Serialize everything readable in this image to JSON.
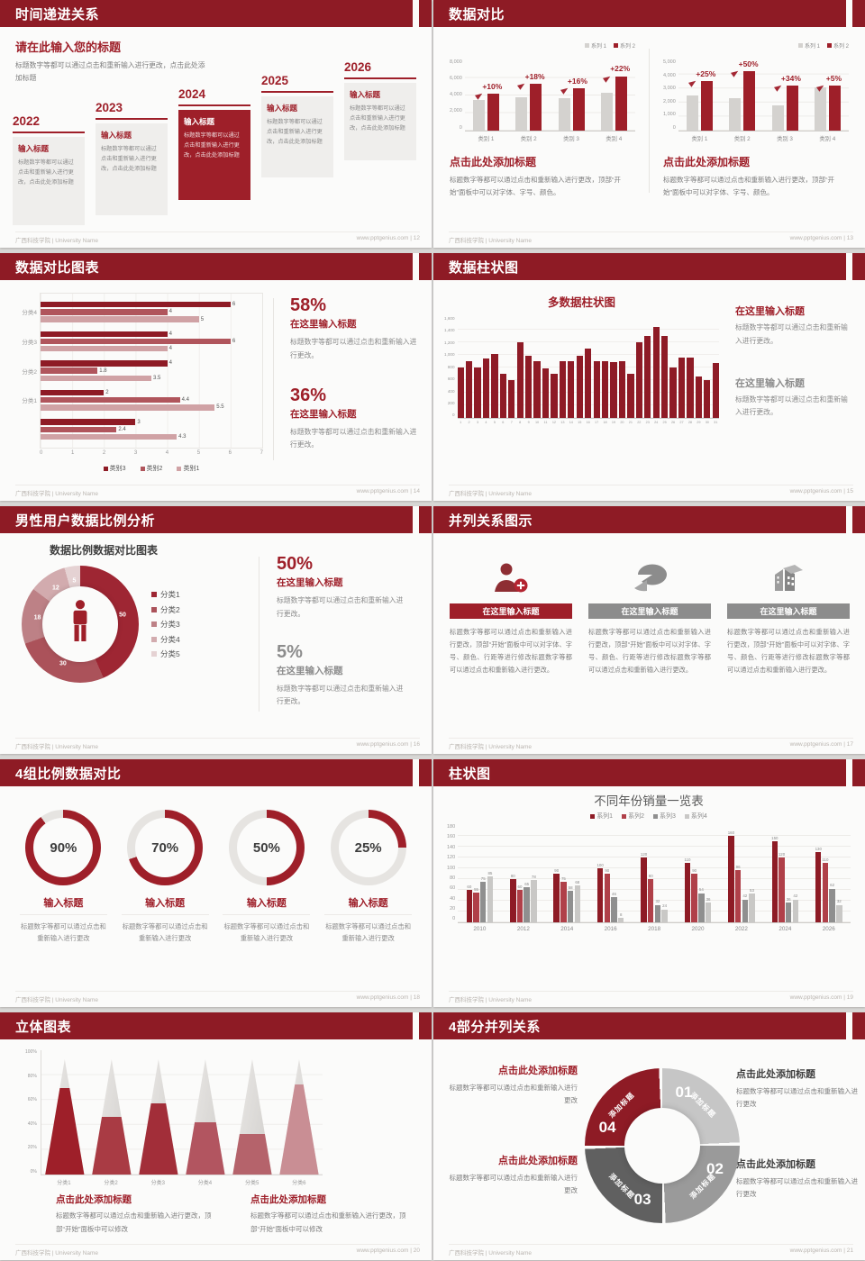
{
  "colors": {
    "header_bg": "#8e1b25",
    "accent_red": "#9e1f29",
    "red_mid": "#b0555c",
    "red_light": "#d0a2a5",
    "gray_bar": "#d4d2cf",
    "gray_dark": "#595959"
  },
  "footer": {
    "left": "广西科技学院 | University Name",
    "site": "www.pptgenius.com",
    "sep": " | "
  },
  "slides": {
    "s12": {
      "title": "时间递进关系",
      "page": "12",
      "intro_title": "请在此输入您的标题",
      "intro_body": "标题数字等都可以通过点击和重新输入进行更改，点击此处添加标题",
      "years": [
        "2022",
        "2023",
        "2024",
        "2025",
        "2026"
      ],
      "item_title": "输入标题",
      "item_body": "标题数字等都可以通过点击和重新输入进行更改，点击此处添加标题"
    },
    "s13": {
      "title": "数据对比",
      "page": "13",
      "block_title": "点击此处添加标题",
      "block_body": "标题数字等都可以通过点击和重新输入进行更改，顶部“开始”面板中可以对字体、字号、颜色。"
    },
    "s14": {
      "title": "数据对比图表",
      "page": "14",
      "stats": [
        {
          "pct": "58%",
          "heading": "在这里输入标题",
          "body": "标题数字等都可以通过点击和重新输入进行更改。"
        },
        {
          "pct": "36%",
          "heading": "在这里输入标题",
          "body": "标题数字等都可以通过点击和重新输入进行更改。"
        }
      ]
    },
    "s15": {
      "title": "数据柱状图",
      "page": "15",
      "blocks": [
        {
          "heading": "在这里输入标题",
          "body": "标题数字等都可以通过点击和重新输入进行更改。"
        },
        {
          "heading": "在这里输入标题",
          "body": "标题数字等都可以通过点击和重新输入进行更改。"
        }
      ]
    },
    "s16": {
      "title": "男性用户数据比例分析",
      "page": "16",
      "stats": [
        {
          "pct": "50%",
          "heading": "在这里输入标题",
          "body": "标题数字等都可以通过点击和重新输入进行更改。"
        },
        {
          "pct": "5%",
          "heading": "在这里输入标题",
          "body": "标题数字等都可以通过点击和重新输入进行更改。"
        }
      ]
    },
    "s17": {
      "title": "并列关系图示",
      "page": "17",
      "banner": "在这里输入标题",
      "body": "标题数字等都可以通过点击和重新输入进行更改，顶部“开始”面板中可以对字体、字号、颜色、行距等进行修改标题数字等都可以通过点击和重新输入进行更改。"
    },
    "s18": {
      "title": "4组比例数据对比",
      "page": "18",
      "item_title": "输入标题",
      "item_body": "标题数字等都可以通过点击和重新输入进行更改"
    },
    "s19": {
      "title": "柱状图",
      "page": "19"
    },
    "s20": {
      "title": "立体图表",
      "page": "20",
      "block_title": "点击此处添加标题",
      "block_body": "标题数字等都可以通过点击和重新输入进行更改，顶部“开始”面板中可以修改"
    },
    "s21": {
      "title": "4部分并列关系",
      "page": "21",
      "block_title": "点击此处添加标题",
      "block_body": "标题数字等都可以通过点击和重新输入进行更改"
    }
  },
  "chart_data": [
    {
      "id": "chart-13-left",
      "type": "bar",
      "categories": [
        "类别 1",
        "类别 2",
        "类别 3",
        "类别 4"
      ],
      "series": [
        {
          "name": "系列 1",
          "color": "#d4d2cf",
          "values": [
            3500,
            3800,
            3700,
            4300
          ]
        },
        {
          "name": "系列 2",
          "color": "#9e1f29",
          "values": [
            4200,
            5300,
            4800,
            6200
          ]
        }
      ],
      "growth_labels": [
        "+10%",
        "+18%",
        "+16%",
        "+22%"
      ],
      "ylim": [
        0,
        8000
      ],
      "ytick_labels": [
        "8,000",
        "6,000",
        "4,000",
        "2,000",
        "0"
      ],
      "legend_position": "top-right",
      "grid": true
    },
    {
      "id": "chart-13-right",
      "type": "bar",
      "categories": [
        "类别 1",
        "类别 2",
        "类别 3",
        "类别 4"
      ],
      "series": [
        {
          "name": "系列 1",
          "color": "#d4d2cf",
          "values": [
            2500,
            2300,
            1800,
            3100
          ]
        },
        {
          "name": "系列 2",
          "color": "#9e1f29",
          "values": [
            3500,
            4200,
            3200,
            3200
          ]
        }
      ],
      "growth_labels": [
        "+25%",
        "+50%",
        "+34%",
        "+5%"
      ],
      "ylim": [
        0,
        5000
      ],
      "ytick_labels": [
        "5,000",
        "4,000",
        "3,000",
        "2,000",
        "1,000",
        "0"
      ],
      "legend_position": "top-right",
      "grid": true
    },
    {
      "id": "chart-14",
      "type": "bar-horizontal",
      "groups": [
        "分类4",
        "分类3",
        "分类2",
        "分类1",
        ""
      ],
      "series_names": [
        "类别3",
        "类别2",
        "类别1"
      ],
      "colors": [
        "#8e1b25",
        "#b0555c",
        "#d0a2a5"
      ],
      "values": [
        [
          6,
          4,
          5
        ],
        [
          4,
          6,
          4
        ],
        [
          4,
          1.8,
          3.5
        ],
        [
          2,
          4.4,
          5.5
        ],
        [
          3,
          2.4,
          4.3
        ]
      ],
      "xlim": [
        0,
        7
      ],
      "xticks": [
        0,
        1,
        2,
        3,
        4,
        5,
        6,
        7
      ],
      "legend_position": "bottom",
      "grid": true
    },
    {
      "id": "chart-15",
      "type": "bar",
      "title": "多数据柱状图",
      "x": [
        1,
        2,
        3,
        4,
        5,
        6,
        7,
        8,
        9,
        10,
        11,
        12,
        13,
        14,
        15,
        16,
        17,
        18,
        19,
        20,
        21,
        22,
        23,
        24,
        25,
        26,
        27,
        28,
        29,
        30,
        31
      ],
      "values": [
        800,
        900,
        800,
        950,
        1020,
        700,
        600,
        1200,
        980,
        900,
        780,
        700,
        900,
        900,
        990,
        1100,
        900,
        900,
        880,
        900,
        700,
        1200,
        1300,
        1450,
        1300,
        800,
        960,
        960,
        660,
        600,
        870
      ],
      "ylim": [
        0,
        1600
      ],
      "ytick_labels": [
        "1,600",
        "1,400",
        "1,200",
        "1,000",
        "800",
        "600",
        "400",
        "200",
        "0"
      ],
      "grid": true
    },
    {
      "id": "chart-16",
      "type": "donut",
      "title": "数据比例数据对比图表",
      "legend": [
        "分类1",
        "分类2",
        "分类3",
        "分类4",
        "分类5"
      ],
      "values": [
        50,
        30,
        18,
        12,
        5
      ],
      "colors": [
        "#9e2633",
        "#ab525a",
        "#bd8186",
        "#d2abae",
        "#e5d2d3"
      ],
      "center_icon": "male-person-icon",
      "legend_position": "right"
    },
    {
      "id": "chart-18",
      "type": "progress-rings",
      "values": [
        90,
        70,
        50,
        25
      ],
      "labels": [
        "90%",
        "70%",
        "50%",
        "25%"
      ],
      "ring_color": "#9e1f29",
      "track_color": "#e6e4e1"
    },
    {
      "id": "chart-19",
      "type": "bar",
      "title": "不同年份销量一览表",
      "categories": [
        "2010",
        "2012",
        "2014",
        "2016",
        "2018",
        "2020",
        "2022",
        "2024",
        "2026"
      ],
      "series": [
        {
          "name": "系列1",
          "color": "#8e1b25",
          "values": [
            60,
            80,
            90,
            100,
            120,
            110,
            160,
            150,
            130
          ]
        },
        {
          "name": "系列2",
          "color": "#b04049",
          "values": [
            55,
            60,
            75,
            90,
            80,
            90,
            96,
            120,
            110
          ]
        },
        {
          "name": "系列3",
          "color": "#8f8f8f",
          "values": [
            75,
            65,
            58,
            46,
            32,
            54,
            42,
            36,
            62
          ]
        },
        {
          "name": "系列4",
          "color": "#c9c8c6",
          "values": [
            85,
            78,
            68,
            8,
            24,
            36,
            53,
            42,
            32
          ]
        }
      ],
      "ylim": [
        0,
        180
      ],
      "ytick_labels": [
        "180",
        "160",
        "140",
        "120",
        "100",
        "80",
        "60",
        "40",
        "20",
        "0"
      ],
      "legend_position": "top-center",
      "grid": true,
      "value_labels": true
    },
    {
      "id": "chart-20",
      "type": "cone",
      "categories": [
        "分类1",
        "分类2",
        "分类3",
        "分类4",
        "分类5",
        "分类6"
      ],
      "fill_percent": [
        75,
        50,
        62,
        45,
        35,
        78
      ],
      "fill_colors": [
        "#9e1f29",
        "#a93b44",
        "#a22e39",
        "#b25560",
        "#b5636b",
        "#c98e94"
      ],
      "ytick_labels": [
        "100%",
        "80%",
        "60%",
        "40%",
        "20%",
        "0%"
      ]
    },
    {
      "id": "chart-21",
      "type": "segmented-donut",
      "segments": [
        {
          "num": "01",
          "label": "添加标题",
          "color": "#c6c6c6"
        },
        {
          "num": "02",
          "label": "添加标题",
          "color": "#9a9a9a"
        },
        {
          "num": "03",
          "label": "添加标题",
          "color": "#606060"
        },
        {
          "num": "04",
          "label": "添加标题",
          "color": "#8e1b25"
        }
      ]
    }
  ]
}
